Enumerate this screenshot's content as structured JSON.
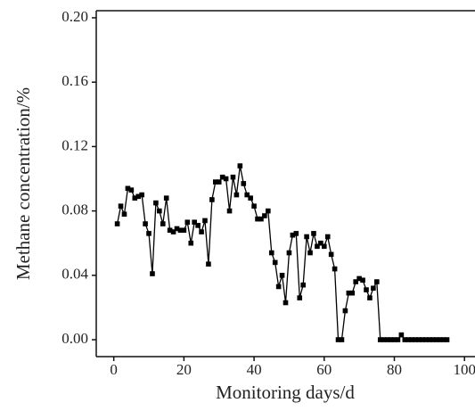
{
  "chart_data": {
    "type": "line",
    "x_label": "Monitoring days/d",
    "y_label": "Methane concentration/%",
    "x": [
      1,
      2,
      3,
      4,
      5,
      6,
      7,
      8,
      9,
      10,
      11,
      12,
      13,
      14,
      15,
      16,
      17,
      18,
      19,
      20,
      21,
      22,
      23,
      24,
      25,
      26,
      27,
      28,
      29,
      30,
      31,
      32,
      33,
      34,
      35,
      36,
      37,
      38,
      39,
      40,
      41,
      42,
      43,
      44,
      45,
      46,
      47,
      48,
      49,
      50,
      51,
      52,
      53,
      54,
      55,
      56,
      57,
      58,
      59,
      60,
      61,
      62,
      63,
      64,
      65,
      66,
      67,
      68,
      69,
      70,
      71,
      72,
      73,
      74,
      75,
      76,
      77,
      78,
      79,
      80,
      81,
      82,
      83,
      84,
      85,
      86,
      87,
      88,
      89,
      90,
      91,
      92,
      93,
      94,
      95
    ],
    "series": [
      {
        "name": "Methane",
        "color": "#000000",
        "values": [
          0.072,
          0.083,
          0.078,
          0.094,
          0.093,
          0.088,
          0.089,
          0.09,
          0.072,
          0.066,
          0.041,
          0.085,
          0.08,
          0.072,
          0.088,
          0.068,
          0.067,
          0.069,
          0.068,
          0.068,
          0.073,
          0.06,
          0.073,
          0.071,
          0.067,
          0.074,
          0.047,
          0.087,
          0.098,
          0.098,
          0.101,
          0.1,
          0.08,
          0.101,
          0.09,
          0.108,
          0.097,
          0.09,
          0.088,
          0.083,
          0.075,
          0.075,
          0.077,
          0.08,
          0.054,
          0.048,
          0.033,
          0.04,
          0.023,
          0.054,
          0.065,
          0.066,
          0.026,
          0.034,
          0.064,
          0.054,
          0.066,
          0.058,
          0.06,
          0.058,
          0.064,
          0.053,
          0.044,
          0,
          0,
          0.018,
          0.029,
          0.029,
          0.036,
          0.038,
          0.037,
          0.031,
          0.026,
          0.032,
          0.036,
          0,
          0,
          0,
          0,
          0,
          0,
          0.003,
          0,
          0,
          0,
          0,
          0,
          0,
          0,
          0,
          0,
          0,
          0,
          0,
          0
        ]
      }
    ],
    "xlim": [
      -5,
      103
    ],
    "xticks": [
      0,
      20,
      40,
      60,
      80,
      100
    ],
    "ylim": [
      -0.0105,
      0.2044
    ],
    "yticks": [
      {
        "value": 0,
        "label": "0.00"
      },
      {
        "value": 0.04,
        "label": "0.04"
      },
      {
        "value": 0.08,
        "label": "0.08"
      },
      {
        "value": 0.12,
        "label": "0.12"
      },
      {
        "value": 0.16,
        "label": "0.16"
      },
      {
        "value": 0.2,
        "label": "0.20"
      }
    ]
  }
}
